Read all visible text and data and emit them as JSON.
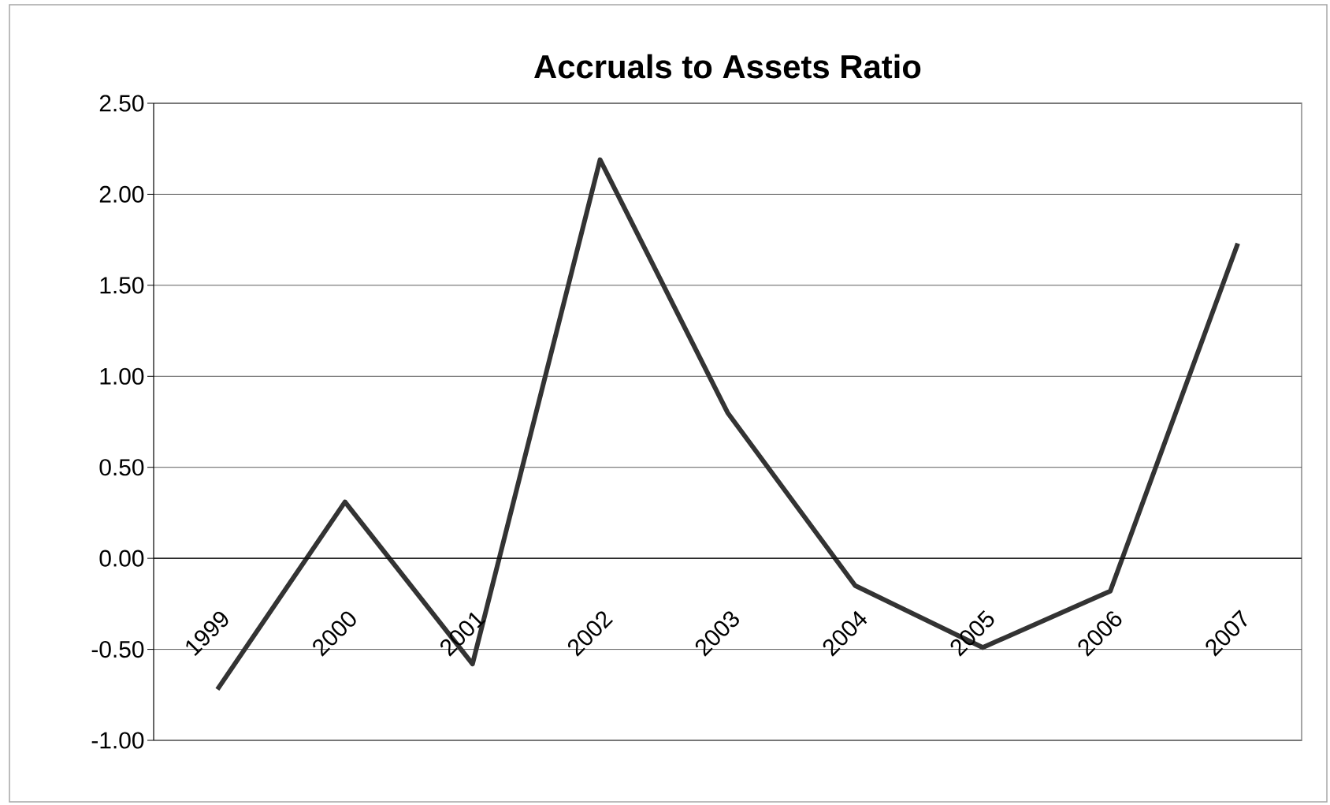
{
  "chart_data": {
    "type": "line",
    "title": "Accruals to Assets Ratio",
    "categories": [
      "1999",
      "2000",
      "2001",
      "2002",
      "2003",
      "2004",
      "2005",
      "2006",
      "2007"
    ],
    "values": [
      -0.72,
      0.31,
      -0.58,
      2.19,
      0.8,
      -0.15,
      -0.49,
      -0.18,
      1.73
    ],
    "color": "#333333",
    "ylim": [
      -1.0,
      2.5
    ],
    "yticks": [
      {
        "value": -1.0,
        "label": "-1.00"
      },
      {
        "value": -0.5,
        "label": "-0.50"
      },
      {
        "value": 0.0,
        "label": "0.00"
      },
      {
        "value": 0.5,
        "label": "0.50"
      },
      {
        "value": 1.0,
        "label": "1.00"
      },
      {
        "value": 1.5,
        "label": "1.50"
      },
      {
        "value": 2.0,
        "label": "2.00"
      },
      {
        "value": 2.5,
        "label": "2.50"
      }
    ],
    "grid": "y",
    "marker": "none",
    "line_style": "solid"
  }
}
